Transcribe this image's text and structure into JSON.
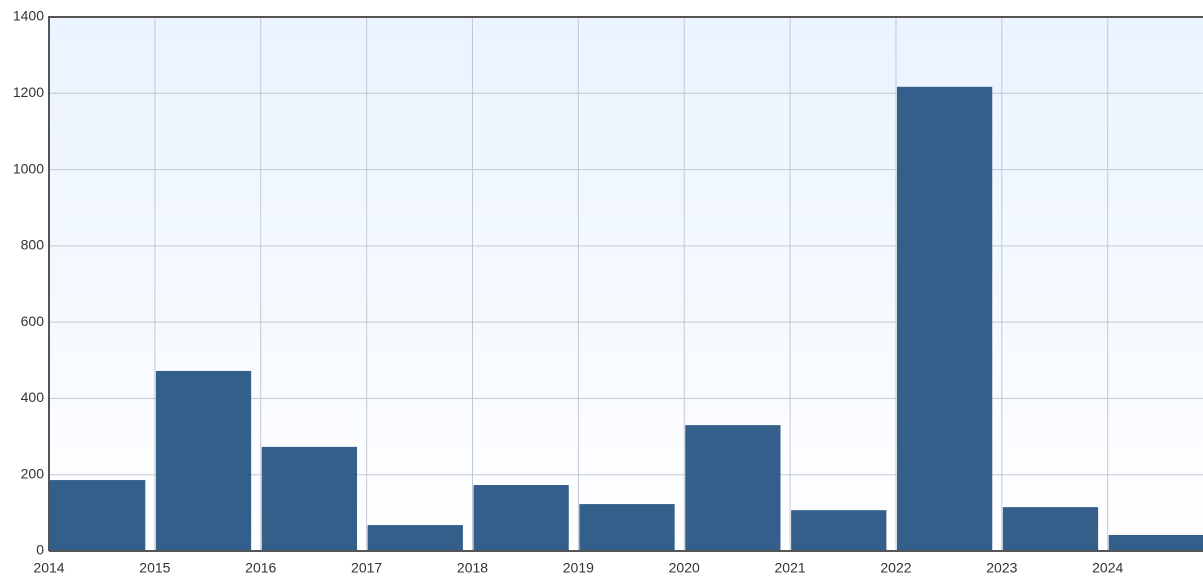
{
  "chart_data": {
    "type": "bar",
    "x": [
      2014,
      2015,
      2016,
      2017,
      2018,
      2019,
      2020,
      2021,
      2022,
      2023,
      2024
    ],
    "values": [
      186,
      472,
      273,
      68,
      173,
      123,
      330,
      107,
      1217,
      115,
      42
    ],
    "color": "#2e5a87",
    "xlim": [
      2014,
      2024.9
    ],
    "xticks": [
      2014,
      2015,
      2016,
      2017,
      2018,
      2019,
      2020,
      2021,
      2022,
      2023,
      2024
    ],
    "ylim": [
      0,
      1400
    ],
    "yticks": [
      0,
      200,
      400,
      600,
      800,
      1000,
      1200,
      1400
    ],
    "grid": true
  }
}
